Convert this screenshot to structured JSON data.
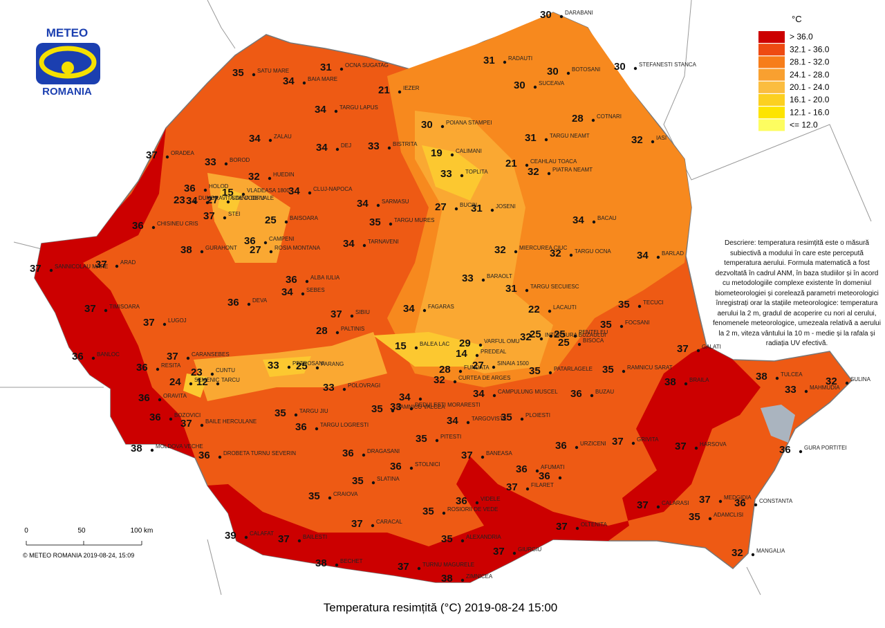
{
  "logo": {
    "top": "METEO",
    "bottom": "ROMANIA"
  },
  "title": "Temperatura resimțită (°C) 2019-08-24 15:00",
  "legend": {
    "unit": "°C",
    "classes": [
      {
        "label": "> 36.0",
        "color": "#cc0000"
      },
      {
        "label": "32.1 - 36.0",
        "color": "#ee4a12"
      },
      {
        "label": "28.1 - 32.0",
        "color": "#f77d1a"
      },
      {
        "label": "24.1 - 28.0",
        "color": "#f9a030"
      },
      {
        "label": "20.1 - 24.0",
        "color": "#fbbd40"
      },
      {
        "label": "16.1 - 20.0",
        "color": "#fcd020"
      },
      {
        "label": "12.1 - 16.0",
        "color": "#fde400"
      },
      {
        "label": "<= 12.0",
        "color": "#fdfd60"
      }
    ]
  },
  "description": "Descriere: temperatura resimțită este o măsură subiectivă a modului în care este percepută temperatura aerului. Formula matematică a fost dezvoltată în cadrul ANM, în baza studiilor și în acord cu metodologiile complexe existente în domeniul biometeorologiei și corelează parametri meteorologici înregistrați orar la stațiile meteorologice: temperatura aerului la 2 m, gradul de acoperire cu nori al cerului, fenomenele meteorologice, umezeala relativă a aerului la 2 m, viteza vântului la 10 m - medie și la rafala și radiația UV efectivă.",
  "scale": {
    "ticks": [
      "0",
      "50",
      "100 km"
    ]
  },
  "copyright": "© METEO ROMANIA 2019-08-24, 15:09",
  "stations": [
    {
      "name": "DARABANI",
      "value": 30
    },
    {
      "name": "STEFANESTI STANCA",
      "value": 30
    },
    {
      "name": "RADAUTI",
      "value": 31
    },
    {
      "name": "BOTOSANI",
      "value": 30
    },
    {
      "name": "SUCEAVA",
      "value": 30
    },
    {
      "name": "COTNARI",
      "value": 28
    },
    {
      "name": "IASI",
      "value": 32
    },
    {
      "name": "TARGU NEAMT",
      "value": 31
    },
    {
      "name": "PIATRA NEAMT",
      "value": 32
    },
    {
      "name": "OCNA SUGATAG",
      "value": 31
    },
    {
      "name": "BAIA MARE",
      "value": 34
    },
    {
      "name": "SATU MARE",
      "value": 35
    },
    {
      "name": "IEZER",
      "value": 21
    },
    {
      "name": "TARGU LAPUS",
      "value": 34
    },
    {
      "name": "POIANA STAMPEI",
      "value": 30
    },
    {
      "name": "ZALAU",
      "value": 34
    },
    {
      "name": "DEJ",
      "value": 34
    },
    {
      "name": "BISTRITA",
      "value": 33
    },
    {
      "name": "CALIMANI",
      "value": 19
    },
    {
      "name": "ORADEA",
      "value": 37
    },
    {
      "name": "BOROD",
      "value": 33
    },
    {
      "name": "VLADEASA 1800",
      "value": 15
    },
    {
      "name": "HUEDIN",
      "value": 32
    },
    {
      "name": "CEAHLAU TOACA",
      "value": 21
    },
    {
      "name": "TOPLITA",
      "value": 33
    },
    {
      "name": "HOLOD",
      "value": 36
    },
    {
      "name": "CLUJ-NAPOCA",
      "value": 34
    },
    {
      "name": "SARMASU",
      "value": 34
    },
    {
      "name": "STANA DE VALE",
      "value": 27
    },
    {
      "name": "DUMBRAVITA DE CODRU",
      "value": 23
    },
    {
      "name": null,
      "value": 34
    },
    {
      "name": "CHISINEU CRIS",
      "value": 36
    },
    {
      "name": "STEI",
      "value": 37
    },
    {
      "name": "JOSENI",
      "value": 31
    },
    {
      "name": "BUCIN",
      "value": 27
    },
    {
      "name": "BACAU",
      "value": 34
    },
    {
      "name": "BAISOARA",
      "value": 25
    },
    {
      "name": "TARGU MURES",
      "value": 35
    },
    {
      "name": "GURAHONT",
      "value": 38
    },
    {
      "name": "CAMPENI",
      "value": 36
    },
    {
      "name": "ROSIA MONTANA",
      "value": 27
    },
    {
      "name": "TARNAVENI",
      "value": 34
    },
    {
      "name": "MIERCUREA CIUC",
      "value": 32
    },
    {
      "name": "TARGU OCNA",
      "value": 32
    },
    {
      "name": "BARLAD",
      "value": 34
    },
    {
      "name": "SANNICOLAU MARE",
      "value": 37
    },
    {
      "name": "ARAD",
      "value": 37
    },
    {
      "name": "ALBA IULIA",
      "value": 36
    },
    {
      "name": "SEBES",
      "value": 34
    },
    {
      "name": "BARAOLT",
      "value": 33
    },
    {
      "name": "TARGU SECUIESC",
      "value": 31
    },
    {
      "name": "DEVA",
      "value": 36
    },
    {
      "name": "TIMISOARA",
      "value": 37
    },
    {
      "name": "SIBIU",
      "value": 37
    },
    {
      "name": "FAGARAS",
      "value": 34
    },
    {
      "name": "LACAUTI",
      "value": 22
    },
    {
      "name": "TECUCI",
      "value": 35
    },
    {
      "name": "LUGOJ",
      "value": 37
    },
    {
      "name": "PALTINIS",
      "value": 28
    },
    {
      "name": "BALEA LAC",
      "value": 15
    },
    {
      "name": "VARFUL OMU",
      "value": 29
    },
    {
      "name": "INTORSURA BUZAULUI",
      "value": 32
    },
    {
      "name": null,
      "value": 25
    },
    {
      "name": "BISOCA",
      "value": 25
    },
    {
      "name": "FOCSANI",
      "value": 35
    },
    {
      "name": "GALATI",
      "value": 37
    },
    {
      "name": "BANLOC",
      "value": 36
    },
    {
      "name": "CARANSEBES",
      "value": 37
    },
    {
      "name": "PETROSANI",
      "value": 33
    },
    {
      "name": "PARANG",
      "value": 25
    },
    {
      "name": "PREDEAL",
      "value": 14
    },
    {
      "name": "FUNDATA",
      "value": 28
    },
    {
      "name": "SINAIA 1500",
      "value": 27
    },
    {
      "name": "RAMNICU SARAT",
      "value": 35
    },
    {
      "name": "PATARLAGELE",
      "value": 35
    },
    {
      "name": "PENTELEU",
      "value": 25
    },
    {
      "name": "CUNTU",
      "value": 23
    },
    {
      "name": "TARCU",
      "value": 12
    },
    {
      "name": "RESITA",
      "value": 36
    },
    {
      "name": "CURTEA DE ARGES",
      "value": 32
    },
    {
      "name": "BRAILA",
      "value": 38
    },
    {
      "name": "TULCEA",
      "value": 38
    },
    {
      "name": "SULINA",
      "value": 32
    },
    {
      "name": "MAHMUDIA",
      "value": 33
    },
    {
      "name": "SEMENIC",
      "value": 24
    },
    {
      "name": "POLOVRAGI",
      "value": 33
    },
    {
      "name": "CAMPULUNG MUSCEL",
      "value": 34
    },
    {
      "name": "BUZAU",
      "value": 36
    },
    {
      "name": "ORAVITA",
      "value": 36
    },
    {
      "name": "TARGU JIU",
      "value": 35
    },
    {
      "name": "RAMNICU VALCEA",
      "value": 35
    },
    {
      "name": "DEDULESTI MORARESTI",
      "value": 33
    },
    {
      "name": null,
      "value": 34
    },
    {
      "name": "BOZOVICI",
      "value": 36
    },
    {
      "name": "BAILE HERCULANE",
      "value": 37
    },
    {
      "name": "TARGOVISTE",
      "value": 34
    },
    {
      "name": "PLOIESTI",
      "value": 35
    },
    {
      "name": "TARGU LOGRESTI",
      "value": 36
    },
    {
      "name": "PITESTI",
      "value": 35
    },
    {
      "name": "MOLDOVA VECHE",
      "value": 38
    },
    {
      "name": "URZICENI",
      "value": 36
    },
    {
      "name": "GRIVITA",
      "value": 37
    },
    {
      "name": "HARSOVA",
      "value": 37
    },
    {
      "name": "GURA PORTITEI",
      "value": 36
    },
    {
      "name": "DROBETA TURNU SEVERIN",
      "value": 36
    },
    {
      "name": "DRAGASANI",
      "value": 36
    },
    {
      "name": "STOLNICI",
      "value": 36
    },
    {
      "name": "BANEASA",
      "value": 37
    },
    {
      "name": "AFUMATI",
      "value": 36
    },
    {
      "name": null,
      "value": 36
    },
    {
      "name": "FILARET",
      "value": 37
    },
    {
      "name": "SLATINA",
      "value": 35
    },
    {
      "name": "CRAIOVA",
      "value": 35
    },
    {
      "name": "VIDELE",
      "value": 36
    },
    {
      "name": "CALARASI",
      "value": 37
    },
    {
      "name": "MEDGIDIA",
      "value": 37
    },
    {
      "name": "CONSTANTA",
      "value": 36
    },
    {
      "name": "ROSIORII DE VEDE",
      "value": 35
    },
    {
      "name": "CARACAL",
      "value": 37
    },
    {
      "name": "OLTENITA",
      "value": 37
    },
    {
      "name": "ADAMCLISI",
      "value": 35
    },
    {
      "name": "BAILESTI",
      "value": 37
    },
    {
      "name": "CALAFAT",
      "value": 39
    },
    {
      "name": "ALEXANDRIA",
      "value": 35
    },
    {
      "name": "GIURGIU",
      "value": 37
    },
    {
      "name": "MANGALIA",
      "value": 32
    },
    {
      "name": "BECHET",
      "value": 38
    },
    {
      "name": "TURNU MAGURELE",
      "value": 37
    },
    {
      "name": "ZIMNICEA",
      "value": 38
    }
  ]
}
